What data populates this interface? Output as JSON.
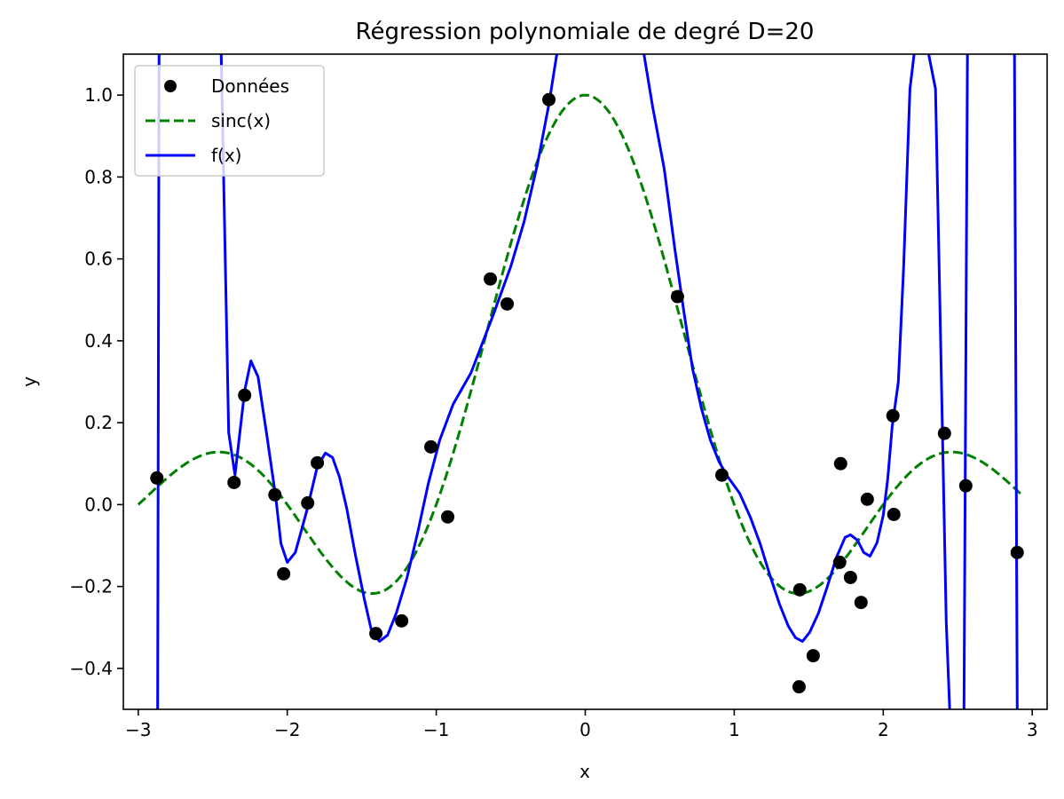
{
  "chart_data": {
    "type": "line",
    "title": "Régression polynomiale de degré D=20",
    "xlabel": "x",
    "ylabel": "y",
    "xlim": [
      -3.1,
      3.1
    ],
    "ylim": [
      -0.5,
      1.1
    ],
    "grid": false,
    "legend_placement": "top-left",
    "xticks": [
      -3,
      -2,
      -1,
      0,
      1,
      2,
      3
    ],
    "xtick_labels": [
      "−3",
      "−2",
      "−1",
      "0",
      "1",
      "2",
      "3"
    ],
    "yticks": [
      -0.4,
      -0.2,
      0.0,
      0.2,
      0.4,
      0.6,
      0.8,
      1.0
    ],
    "ytick_labels": [
      "−0.4",
      "−0.2",
      "0.0",
      "0.2",
      "0.4",
      "0.6",
      "0.8",
      "1.0"
    ],
    "series": [
      {
        "name": "Données",
        "kind": "scatter",
        "color": "#000000",
        "points": [
          [
            -2.875,
            0.065
          ],
          [
            -2.357,
            0.054
          ],
          [
            -2.286,
            0.267
          ],
          [
            -2.083,
            0.024
          ],
          [
            -2.024,
            -0.169
          ],
          [
            -1.863,
            0.004
          ],
          [
            -1.798,
            0.102
          ],
          [
            -1.405,
            -0.315
          ],
          [
            -1.232,
            -0.284
          ],
          [
            -1.036,
            0.141
          ],
          [
            -0.923,
            -0.03
          ],
          [
            -0.637,
            0.551
          ],
          [
            -0.524,
            0.49
          ],
          [
            -0.244,
            0.989
          ],
          [
            0.619,
            0.508
          ],
          [
            0.917,
            0.072
          ],
          [
            1.44,
            -0.208
          ],
          [
            1.435,
            -0.445
          ],
          [
            1.53,
            -0.369
          ],
          [
            1.708,
            -0.141
          ],
          [
            1.714,
            0.1
          ],
          [
            1.78,
            -0.178
          ],
          [
            1.851,
            -0.239
          ],
          [
            1.893,
            0.013
          ],
          [
            2.065,
            0.217
          ],
          [
            2.071,
            -0.024
          ],
          [
            2.411,
            0.174
          ],
          [
            2.554,
            0.046
          ],
          [
            2.899,
            -0.117
          ]
        ]
      },
      {
        "name": "sinc(x)",
        "kind": "dashed",
        "color": "#008000",
        "function": "sin(pi*x)/(pi*x)",
        "x_range": [
          -3.0,
          2.95
        ]
      },
      {
        "name": "f(x)",
        "kind": "line",
        "color": "#0000ff",
        "points": [
          [
            -2.87,
            -1.0
          ],
          [
            -2.86,
            1.5
          ],
          [
            -2.446,
            1.5
          ],
          [
            -2.393,
            0.176
          ],
          [
            -2.351,
            0.072
          ],
          [
            -2.286,
            0.278
          ],
          [
            -2.244,
            0.351
          ],
          [
            -2.196,
            0.312
          ],
          [
            -2.137,
            0.169
          ],
          [
            -2.077,
            0.017
          ],
          [
            -2.042,
            -0.095
          ],
          [
            -2.0,
            -0.141
          ],
          [
            -1.946,
            -0.117
          ],
          [
            -1.869,
            -0.015
          ],
          [
            -1.798,
            0.093
          ],
          [
            -1.744,
            0.126
          ],
          [
            -1.696,
            0.115
          ],
          [
            -1.649,
            0.067
          ],
          [
            -1.601,
            -0.009
          ],
          [
            -1.542,
            -0.124
          ],
          [
            -1.482,
            -0.232
          ],
          [
            -1.435,
            -0.308
          ],
          [
            -1.381,
            -0.334
          ],
          [
            -1.327,
            -0.319
          ],
          [
            -1.268,
            -0.265
          ],
          [
            -1.196,
            -0.178
          ],
          [
            -1.125,
            -0.069
          ],
          [
            -1.054,
            0.05
          ],
          [
            -0.976,
            0.158
          ],
          [
            -0.887,
            0.245
          ],
          [
            -0.768,
            0.321
          ],
          [
            -0.619,
            0.462
          ],
          [
            -0.5,
            0.581
          ],
          [
            -0.411,
            0.69
          ],
          [
            -0.321,
            0.831
          ],
          [
            -0.244,
            0.977
          ],
          [
            -0.19,
            1.102
          ],
          [
            -0.1,
            1.5
          ],
          [
            0.3,
            1.5
          ],
          [
            0.393,
            1.102
          ],
          [
            0.452,
            0.972
          ],
          [
            0.53,
            0.82
          ],
          [
            0.601,
            0.625
          ],
          [
            0.661,
            0.473
          ],
          [
            0.72,
            0.332
          ],
          [
            0.78,
            0.234
          ],
          [
            0.839,
            0.158
          ],
          [
            0.899,
            0.104
          ],
          [
            0.958,
            0.067
          ],
          [
            1.036,
            0.028
          ],
          [
            1.107,
            -0.03
          ],
          [
            1.173,
            -0.095
          ],
          [
            1.244,
            -0.178
          ],
          [
            1.304,
            -0.243
          ],
          [
            1.363,
            -0.297
          ],
          [
            1.411,
            -0.325
          ],
          [
            1.458,
            -0.334
          ],
          [
            1.506,
            -0.312
          ],
          [
            1.565,
            -0.265
          ],
          [
            1.625,
            -0.2
          ],
          [
            1.685,
            -0.13
          ],
          [
            1.744,
            -0.08
          ],
          [
            1.78,
            -0.074
          ],
          [
            1.827,
            -0.087
          ],
          [
            1.869,
            -0.117
          ],
          [
            1.911,
            -0.126
          ],
          [
            1.958,
            -0.093
          ],
          [
            2.0,
            -0.026
          ],
          [
            2.03,
            0.061
          ],
          [
            2.06,
            0.191
          ],
          [
            2.101,
            0.299
          ],
          [
            2.137,
            0.581
          ],
          [
            2.179,
            1.015
          ],
          [
            2.208,
            1.102
          ],
          [
            2.25,
            1.5
          ],
          [
            2.3,
            1.5
          ],
          [
            2.304,
            1.102
          ],
          [
            2.351,
            1.015
          ],
          [
            2.375,
            0.581
          ],
          [
            2.399,
            0.148
          ],
          [
            2.423,
            -0.286
          ],
          [
            2.446,
            -0.501
          ],
          [
            2.47,
            -1.0
          ],
          [
            2.53,
            -1.0
          ],
          [
            2.542,
            -0.501
          ],
          [
            2.565,
            1.102
          ],
          [
            2.6,
            1.5
          ],
          [
            2.88,
            1.5
          ],
          [
            2.9,
            -1.0
          ]
        ]
      }
    ]
  }
}
